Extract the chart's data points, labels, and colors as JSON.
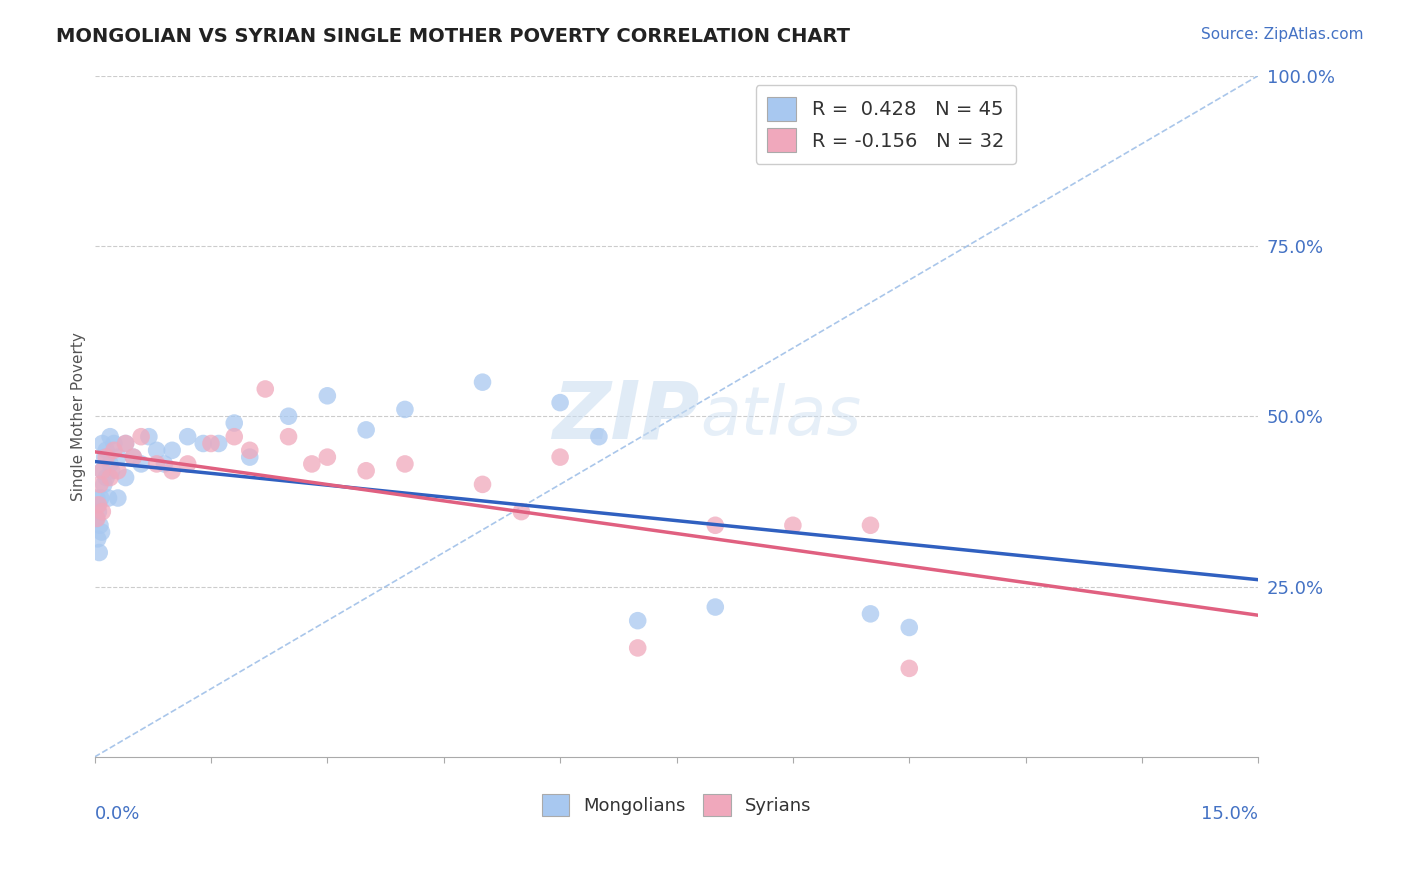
{
  "title": "MONGOLIAN VS SYRIAN SINGLE MOTHER POVERTY CORRELATION CHART",
  "source": "Source: ZipAtlas.com",
  "ylabel": "Single Mother Poverty",
  "right_yticks": [
    0.25,
    0.5,
    0.75,
    1.0
  ],
  "right_yticklabels": [
    "25.0%",
    "50.0%",
    "75.0%",
    "100.0%"
  ],
  "mongolian_R": 0.428,
  "mongolian_N": 45,
  "syrian_R": -0.156,
  "syrian_N": 32,
  "mongolian_color": "#A8C8F0",
  "syrian_color": "#F0A8BC",
  "mongolian_line_color": "#3060C0",
  "syrian_line_color": "#E06080",
  "ref_line_color": "#A0C0E8",
  "background_color": "#FFFFFF",
  "watermark_zip": "ZIP",
  "watermark_atlas": "atlas",
  "xmin": 0.0,
  "xmax": 0.15,
  "ymin": 0.0,
  "ymax": 1.0,
  "mongolian_x": [
    0.0002,
    0.0003,
    0.0004,
    0.0005,
    0.0006,
    0.0007,
    0.0008,
    0.0009,
    0.001,
    0.001,
    0.0012,
    0.0013,
    0.0015,
    0.0015,
    0.0018,
    0.002,
    0.002,
    0.0022,
    0.0025,
    0.003,
    0.003,
    0.004,
    0.004,
    0.005,
    0.006,
    0.007,
    0.008,
    0.009,
    0.01,
    0.012,
    0.014,
    0.016,
    0.018,
    0.02,
    0.025,
    0.03,
    0.035,
    0.04,
    0.05,
    0.06,
    0.065,
    0.07,
    0.08,
    0.1,
    0.105
  ],
  "mongolian_y": [
    0.35,
    0.38,
    0.32,
    0.36,
    0.3,
    0.34,
    0.38,
    0.33,
    0.42,
    0.46,
    0.4,
    0.44,
    0.41,
    0.45,
    0.38,
    0.43,
    0.47,
    0.42,
    0.46,
    0.38,
    0.44,
    0.41,
    0.46,
    0.44,
    0.43,
    0.47,
    0.45,
    0.43,
    0.45,
    0.47,
    0.46,
    0.46,
    0.49,
    0.44,
    0.5,
    0.53,
    0.48,
    0.51,
    0.55,
    0.52,
    0.47,
    0.2,
    0.22,
    0.21,
    0.19
  ],
  "syrian_x": [
    0.0003,
    0.0005,
    0.0007,
    0.001,
    0.001,
    0.0015,
    0.002,
    0.0025,
    0.003,
    0.004,
    0.005,
    0.006,
    0.008,
    0.01,
    0.012,
    0.015,
    0.018,
    0.02,
    0.022,
    0.025,
    0.028,
    0.03,
    0.035,
    0.04,
    0.05,
    0.055,
    0.06,
    0.07,
    0.08,
    0.09,
    0.1,
    0.105
  ],
  "syrian_y": [
    0.35,
    0.37,
    0.4,
    0.36,
    0.42,
    0.44,
    0.41,
    0.45,
    0.42,
    0.46,
    0.44,
    0.47,
    0.43,
    0.42,
    0.43,
    0.46,
    0.47,
    0.45,
    0.54,
    0.47,
    0.43,
    0.44,
    0.42,
    0.43,
    0.4,
    0.36,
    0.44,
    0.16,
    0.34,
    0.34,
    0.34,
    0.13
  ],
  "legend_R_color": "#4472C4",
  "legend_N_color": "#4472C4"
}
